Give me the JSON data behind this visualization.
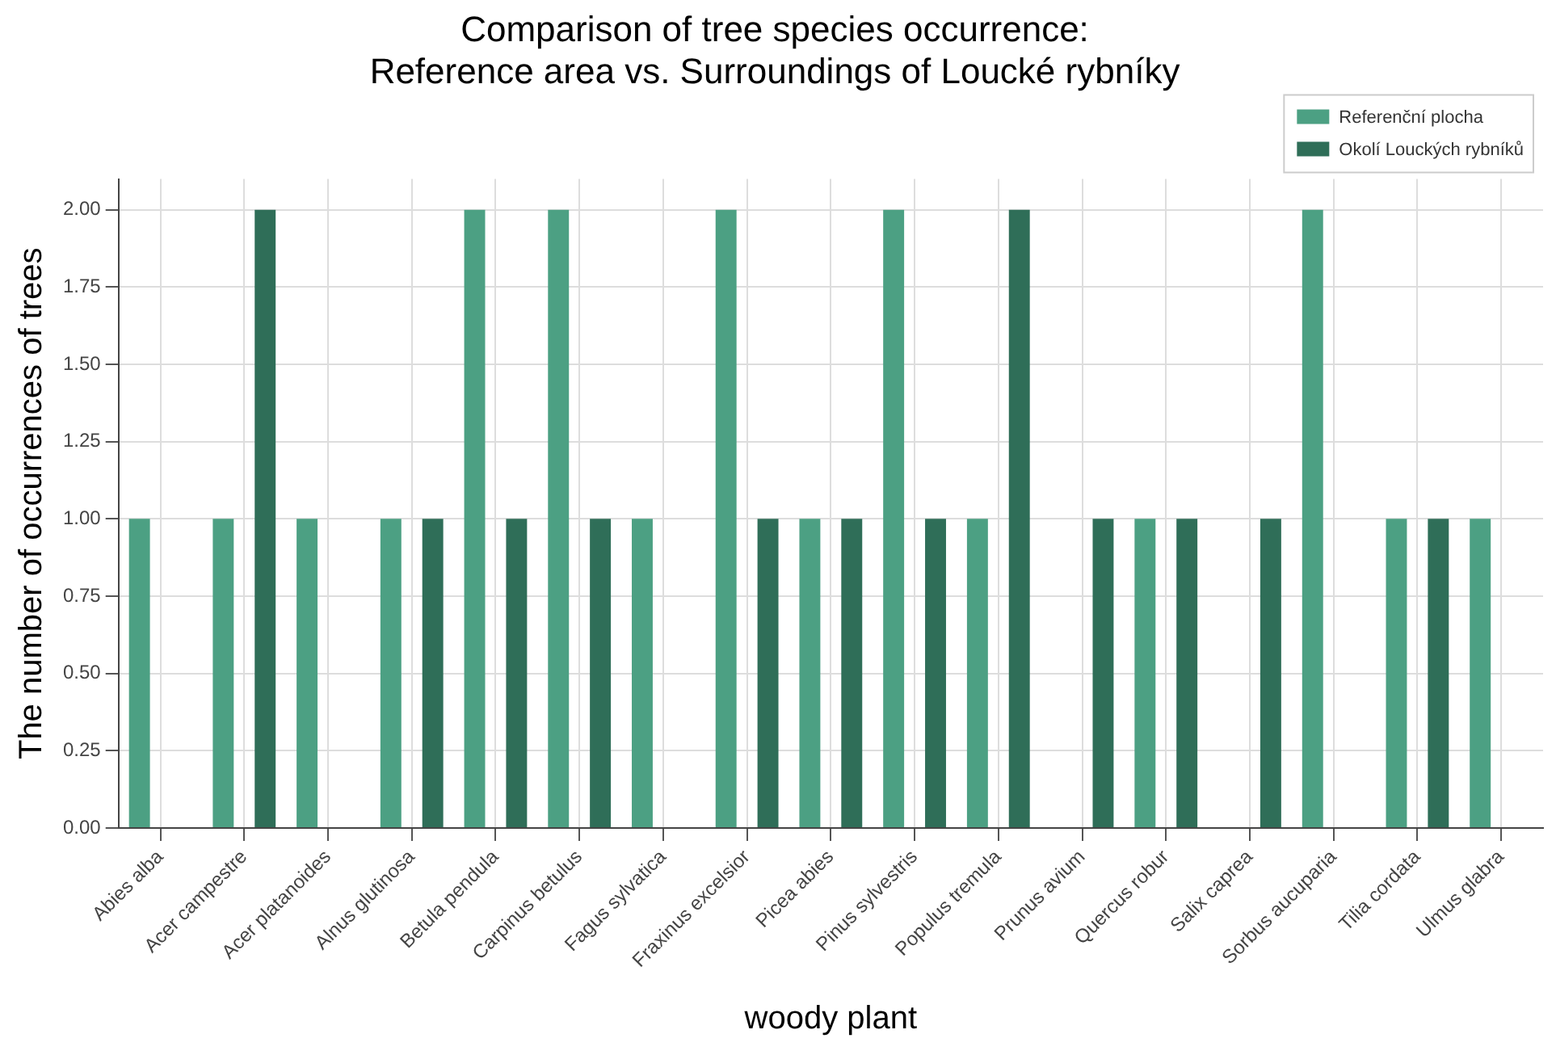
{
  "chart_data": {
    "type": "bar",
    "title": "Comparison of tree species occurrence:\nReference area vs. Surroundings of Loucké rybníky",
    "xlabel": "woody plant",
    "ylabel": "The number of occurrences of trees",
    "categories": [
      "Abies alba",
      "Acer campestre",
      "Acer platanoides",
      "Alnus glutinosa",
      "Betula pendula",
      "Carpinus betulus",
      "Fagus sylvatica",
      "Fraxinus excelsior",
      "Picea abies",
      "Pinus sylvestris",
      "Populus tremula",
      "Prunus avium",
      "Quercus robur",
      "Salix caprea",
      "Sorbus aucuparia",
      "Tilia cordata",
      "Ulmus glabra"
    ],
    "series": [
      {
        "name": "Referenční plocha",
        "color": "#4ca083",
        "values": [
          1,
          1,
          1,
          1,
          2,
          2,
          1,
          2,
          1,
          2,
          1,
          0,
          1,
          0,
          2,
          1,
          1
        ]
      },
      {
        "name": "Okolí Louckých rybníků",
        "color": "#2f6e58",
        "values": [
          0,
          2,
          0,
          1,
          1,
          1,
          0,
          1,
          1,
          1,
          2,
          1,
          1,
          1,
          0,
          1,
          0
        ]
      }
    ],
    "ylim": [
      0,
      2.1
    ],
    "yticks": [
      {
        "value": 0,
        "label": "0.00"
      },
      {
        "value": 0.25,
        "label": "0.25"
      },
      {
        "value": 0.5,
        "label": "0.50"
      },
      {
        "value": 0.75,
        "label": "0.75"
      },
      {
        "value": 1,
        "label": "1.00"
      },
      {
        "value": 1.25,
        "label": "1.25"
      },
      {
        "value": 1.5,
        "label": "1.50"
      },
      {
        "value": 1.75,
        "label": "1.75"
      },
      {
        "value": 2,
        "label": "2.00"
      }
    ],
    "grid": true,
    "legend": "top right"
  }
}
